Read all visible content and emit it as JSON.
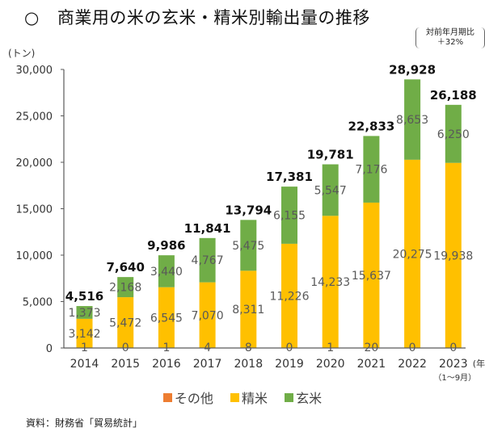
{
  "title": {
    "marker": "○",
    "text": "商業用の米の玄米・精米別輸出量の推移"
  },
  "yoy_note": {
    "line1": "対前年月期比",
    "line2": "＋32%"
  },
  "source": "資料：財務省「貿易統計」",
  "colors": {
    "other": "#ED7D31",
    "milled": "#FFC000",
    "brown": "#70AD47"
  },
  "chart_data": {
    "type": "bar",
    "stacked": true,
    "title": "商業用の米の玄米・精米別輸出量の推移",
    "ylabel": "(トン)",
    "xlabel": "(年)",
    "ylim": [
      0,
      30000
    ],
    "yticks": [
      "0",
      "5,000",
      "10,000",
      "15,000",
      "20,000",
      "25,000",
      "30,000"
    ],
    "ytick_values": [
      0,
      5000,
      10000,
      15000,
      20000,
      25000,
      30000
    ],
    "grid": false,
    "legend_position": "bottom",
    "categories": [
      "2014",
      "2015",
      "2016",
      "2017",
      "2018",
      "2019",
      "2020",
      "2021",
      "2022",
      "2023"
    ],
    "category_notes": {
      "2023": "（1～9月）"
    },
    "x_unit_label": "(年)",
    "series": [
      {
        "name": "その他",
        "key": "other",
        "values": [
          1,
          0,
          1,
          4,
          8,
          0,
          1,
          20,
          0,
          0
        ],
        "labels": [
          "1",
          "0",
          "1",
          "4",
          "8",
          "0",
          "1",
          "20",
          "0",
          "0"
        ]
      },
      {
        "name": "精米",
        "key": "milled",
        "values": [
          3142,
          5472,
          6545,
          7070,
          8311,
          11226,
          14233,
          15637,
          20275,
          19938
        ],
        "labels": [
          "3,142",
          "5,472",
          "6,545",
          "7,070",
          "8,311",
          "11,226",
          "14,233",
          "15,637",
          "20,275",
          "19,938"
        ]
      },
      {
        "name": "玄米",
        "key": "brown",
        "values": [
          1373,
          2168,
          3440,
          4767,
          5475,
          6155,
          5547,
          7176,
          8653,
          6250
        ],
        "labels": [
          "1,373",
          "2,168",
          "3,440",
          "4,767",
          "5,475",
          "6,155",
          "5,547",
          "7,176",
          "8,653",
          "6,250"
        ]
      }
    ],
    "totals": [
      4516,
      7640,
      9986,
      11841,
      13794,
      17381,
      19781,
      22833,
      28928,
      26188
    ],
    "total_labels": [
      "4,516",
      "7,640",
      "9,986",
      "11,841",
      "13,794",
      "17,381",
      "19,781",
      "22,833",
      "28,928",
      "26,188"
    ],
    "legend": [
      "その他",
      "精米",
      "玄米"
    ]
  }
}
